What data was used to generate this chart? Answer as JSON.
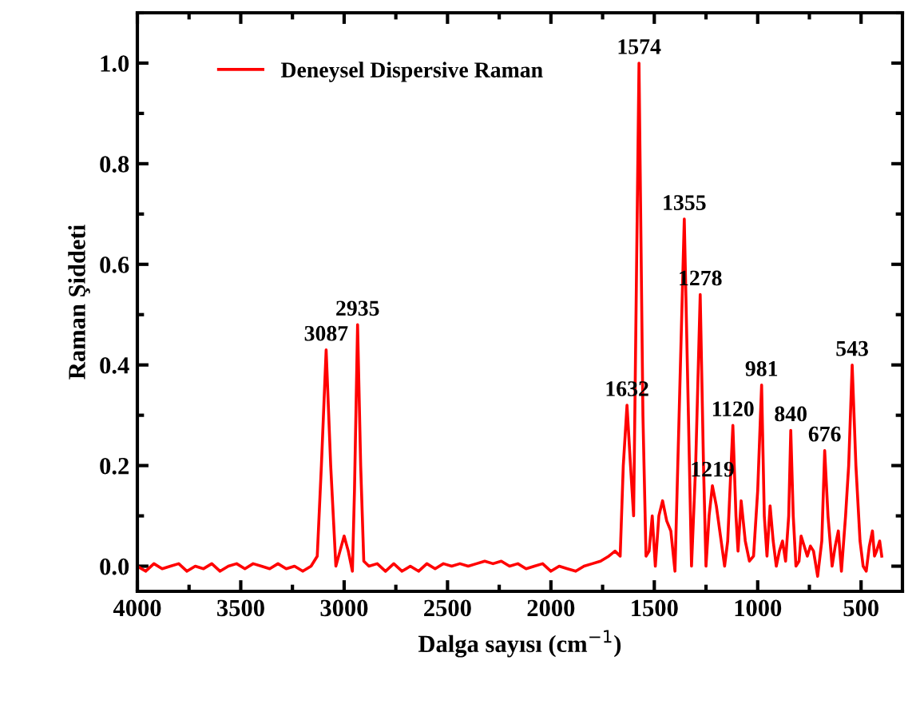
{
  "chart_data": {
    "type": "line",
    "xlabel": "Dalga sayısı (cm$^{−1}$)",
    "ylabel": "Raman Şiddeti",
    "xlim": [
      4000,
      300
    ],
    "ylim": [
      -0.05,
      1.1
    ],
    "xticks": [
      4000,
      3500,
      3000,
      2500,
      2000,
      1500,
      1000,
      500
    ],
    "yticks": [
      {
        "value": 0,
        "label": "0.0"
      },
      {
        "value": 0.2,
        "label": "0.2"
      },
      {
        "value": 0.4,
        "label": "0.4"
      },
      {
        "value": 0.6,
        "label": "0.6"
      },
      {
        "value": 0.8,
        "label": "0.8"
      },
      {
        "value": 1.0,
        "label": "1.0"
      }
    ],
    "grid": false,
    "legend": "top left",
    "marker": "none",
    "line_style": "solid",
    "series": [
      {
        "name": "Deneysel Dispersive Raman",
        "color": "#ff0000",
        "x": [
          4000,
          3960,
          3920,
          3880,
          3840,
          3800,
          3760,
          3720,
          3680,
          3640,
          3600,
          3560,
          3520,
          3480,
          3440,
          3400,
          3360,
          3320,
          3280,
          3240,
          3200,
          3160,
          3130,
          3110,
          3087,
          3065,
          3040,
          3020,
          3000,
          2980,
          2960,
          2950,
          2935,
          2920,
          2905,
          2880,
          2840,
          2800,
          2760,
          2720,
          2680,
          2640,
          2600,
          2560,
          2520,
          2480,
          2440,
          2400,
          2360,
          2320,
          2280,
          2240,
          2200,
          2160,
          2120,
          2080,
          2040,
          2000,
          1960,
          1920,
          1880,
          1840,
          1800,
          1760,
          1720,
          1690,
          1665,
          1650,
          1632,
          1615,
          1600,
          1574,
          1555,
          1540,
          1525,
          1510,
          1495,
          1478,
          1460,
          1440,
          1420,
          1400,
          1380,
          1355,
          1335,
          1320,
          1300,
          1278,
          1262,
          1250,
          1235,
          1219,
          1200,
          1180,
          1160,
          1145,
          1120,
          1105,
          1095,
          1080,
          1060,
          1040,
          1020,
          1000,
          981,
          968,
          955,
          940,
          925,
          910,
          895,
          880,
          865,
          850,
          840,
          828,
          815,
          800,
          790,
          775,
          760,
          745,
          730,
          710,
          690,
          676,
          660,
          640,
          625,
          610,
          595,
          575,
          560,
          543,
          525,
          505,
          490,
          475,
          460,
          445,
          435,
          425,
          410,
          400
        ],
        "values": [
          0.0,
          -0.01,
          0.005,
          -0.005,
          0.0,
          0.005,
          -0.01,
          0.0,
          -0.005,
          0.005,
          -0.01,
          0.0,
          0.005,
          -0.005,
          0.005,
          0.0,
          -0.005,
          0.005,
          -0.005,
          0.0,
          -0.01,
          0.0,
          0.02,
          0.2,
          0.43,
          0.2,
          0.0,
          0.03,
          0.06,
          0.03,
          -0.01,
          0.15,
          0.48,
          0.2,
          0.01,
          0.0,
          0.005,
          -0.01,
          0.005,
          -0.01,
          0.0,
          -0.01,
          0.005,
          -0.005,
          0.005,
          0.0,
          0.005,
          0.0,
          0.005,
          0.01,
          0.005,
          0.01,
          0.0,
          0.005,
          -0.005,
          0.0,
          0.005,
          -0.01,
          0.0,
          -0.005,
          -0.01,
          0.0,
          0.005,
          0.01,
          0.02,
          0.03,
          0.02,
          0.2,
          0.32,
          0.2,
          0.1,
          1.0,
          0.3,
          0.02,
          0.03,
          0.1,
          0.0,
          0.1,
          0.13,
          0.09,
          0.07,
          -0.01,
          0.3,
          0.69,
          0.3,
          0.0,
          0.2,
          0.54,
          0.2,
          0.0,
          0.1,
          0.16,
          0.12,
          0.06,
          0.0,
          0.05,
          0.28,
          0.1,
          0.03,
          0.13,
          0.05,
          0.01,
          0.02,
          0.15,
          0.36,
          0.1,
          0.02,
          0.12,
          0.05,
          0.0,
          0.03,
          0.05,
          0.01,
          0.1,
          0.27,
          0.1,
          0.0,
          0.01,
          0.06,
          0.04,
          0.02,
          0.04,
          0.03,
          -0.02,
          0.05,
          0.23,
          0.1,
          0.0,
          0.04,
          0.07,
          -0.01,
          0.1,
          0.2,
          0.4,
          0.2,
          0.05,
          0.0,
          -0.01,
          0.04,
          0.07,
          0.02,
          0.03,
          0.05,
          0.02
        ]
      }
    ],
    "annotations": [
      {
        "text": "3087",
        "x": 3087,
        "y": 0.43
      },
      {
        "text": "2935",
        "x": 2935,
        "y": 0.48
      },
      {
        "text": "1632",
        "x": 1632,
        "y": 0.32
      },
      {
        "text": "1574",
        "x": 1574,
        "y": 1.0
      },
      {
        "text": "1355",
        "x": 1355,
        "y": 0.69
      },
      {
        "text": "1278",
        "x": 1278,
        "y": 0.54
      },
      {
        "text": "1219",
        "x": 1219,
        "y": 0.16
      },
      {
        "text": "1120",
        "x": 1120,
        "y": 0.28
      },
      {
        "text": "981",
        "x": 981,
        "y": 0.36
      },
      {
        "text": "840",
        "x": 840,
        "y": 0.27
      },
      {
        "text": "676",
        "x": 676,
        "y": 0.23
      },
      {
        "text": "543",
        "x": 543,
        "y": 0.4
      }
    ]
  }
}
